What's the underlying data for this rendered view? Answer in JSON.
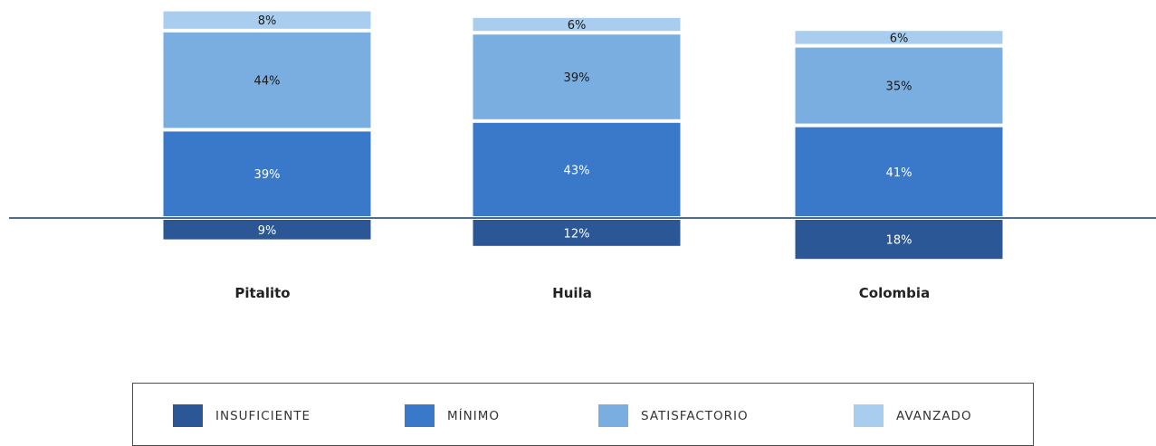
{
  "chart_data": {
    "type": "bar",
    "stacked": "diverging",
    "categories": [
      "Pitalito",
      "Huila",
      "Colombia"
    ],
    "series": [
      {
        "name": "INSUFICIENTE",
        "values": [
          9,
          12,
          18
        ],
        "labels": [
          "9%",
          "12%",
          "18%"
        ],
        "color": "#2b5797",
        "label_color": "#ffffff",
        "side": "below"
      },
      {
        "name": "MÍNIMO",
        "values": [
          39,
          43,
          41
        ],
        "labels": [
          "39%",
          "43%",
          "41%"
        ],
        "color": "#3a78c9",
        "label_color": "#ffffff",
        "side": "above"
      },
      {
        "name": "SATISFACTORIO",
        "values": [
          44,
          39,
          35
        ],
        "labels": [
          "44%",
          "39%",
          "35%"
        ],
        "color": "#7aaee0",
        "label_color": "#1a1a1a",
        "side": "above"
      },
      {
        "name": "AVANZADO",
        "values": [
          8,
          6,
          6
        ],
        "labels": [
          "8%",
          "6%",
          "6%"
        ],
        "color": "#a8cdee",
        "label_color": "#1a1a1a",
        "side": "above"
      }
    ],
    "baseline_color": "#4a6d8c",
    "legend_position": "bottom",
    "grid": false
  }
}
